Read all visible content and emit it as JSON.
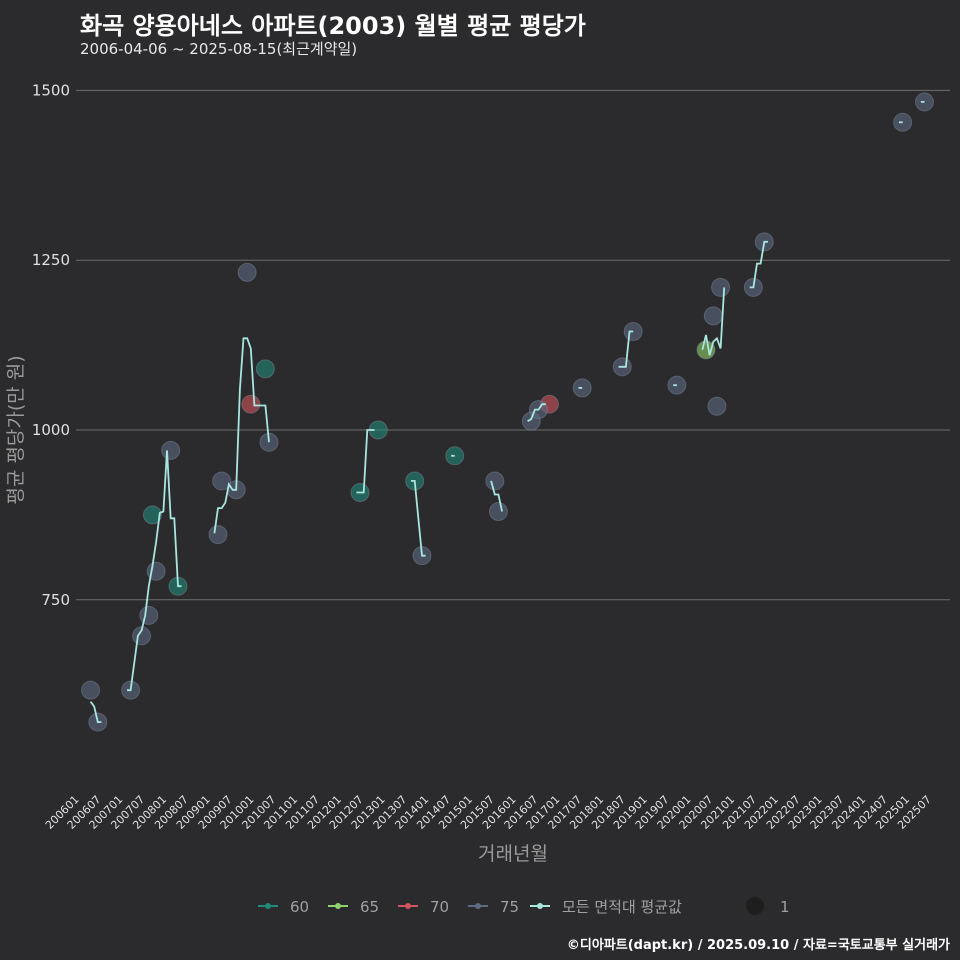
{
  "title": "화곡 양용아네스 아파트(2003) 월별 평균 평당가",
  "subtitle": "2006-04-06 ~ 2025-08-15(최근계약일)",
  "footer": "©디아파트(dapt.kr) / 2025.09.10 / 자료=국토교통부 실거래가",
  "chart_data": {
    "type": "scatter",
    "xlabel": "거래년월",
    "ylabel": "평균 평당가(만 원)",
    "ylim": [
      470,
      1530
    ],
    "yticks": [
      750,
      1000,
      1250,
      1500
    ],
    "xlim": [
      "2005-12",
      "2025-12"
    ],
    "xticks": [
      "200601",
      "200607",
      "200701",
      "200707",
      "200801",
      "200807",
      "200901",
      "200907",
      "201001",
      "201007",
      "201101",
      "201107",
      "201201",
      "201207",
      "201301",
      "201307",
      "201401",
      "201407",
      "201501",
      "201507",
      "201601",
      "201607",
      "201701",
      "201707",
      "201801",
      "201807",
      "201901",
      "201907",
      "202001",
      "202007",
      "202101",
      "202107",
      "202201",
      "202207",
      "202301",
      "202307",
      "202401",
      "202407",
      "202501",
      "202507"
    ],
    "grid": true,
    "colors": {
      "60": "#1f8a7a",
      "65": "#8fd16a",
      "70": "#d0555c",
      "75": "#5c6a82",
      "avg_line": "#a8e6df"
    },
    "legend": {
      "position": "bottom",
      "items": [
        {
          "key": "60",
          "label": "60"
        },
        {
          "key": "65",
          "label": "65"
        },
        {
          "key": "70",
          "label": "70"
        },
        {
          "key": "75",
          "label": "75"
        },
        {
          "key": "avg_line",
          "label": "모든 면적대 평균값"
        }
      ],
      "size_label": "1"
    },
    "series": [
      {
        "name": "60",
        "points": [
          [
            "2007-09",
            875
          ],
          [
            "2008-04",
            770
          ],
          [
            "2010-04",
            1090
          ],
          [
            "2012-06",
            908
          ],
          [
            "2012-11",
            1000
          ],
          [
            "2013-09",
            925
          ],
          [
            "2014-08",
            962
          ]
        ]
      },
      {
        "name": "65",
        "points": [
          [
            "2020-05",
            1118
          ]
        ]
      },
      {
        "name": "70",
        "points": [
          [
            "2009-12",
            1038
          ],
          [
            "2016-10",
            1038
          ]
        ]
      },
      {
        "name": "75",
        "points": [
          [
            "2006-04",
            617
          ],
          [
            "2006-06",
            570
          ],
          [
            "2007-03",
            617
          ],
          [
            "2007-06",
            697
          ],
          [
            "2007-08",
            727
          ],
          [
            "2007-10",
            792
          ],
          [
            "2008-02",
            970
          ],
          [
            "2009-03",
            846
          ],
          [
            "2009-04",
            925
          ],
          [
            "2009-08",
            912
          ],
          [
            "2009-11",
            1232
          ],
          [
            "2010-05",
            982
          ],
          [
            "2013-11",
            815
          ],
          [
            "2015-07",
            925
          ],
          [
            "2015-08",
            880
          ],
          [
            "2016-05",
            1013
          ],
          [
            "2016-07",
            1030
          ],
          [
            "2017-07",
            1062
          ],
          [
            "2018-06",
            1093
          ],
          [
            "2018-09",
            1145
          ],
          [
            "2019-09",
            1066
          ],
          [
            "2020-07",
            1168
          ],
          [
            "2020-08",
            1035
          ],
          [
            "2020-09",
            1210
          ],
          [
            "2021-06",
            1210
          ],
          [
            "2021-09",
            1277
          ],
          [
            "2024-11",
            1453
          ],
          [
            "2025-05",
            1483
          ]
        ]
      }
    ],
    "avg_lines": [
      [
        [
          "2006-04",
          600
        ],
        [
          "2006-05",
          593
        ],
        [
          "2006-06",
          570
        ],
        [
          "2006-07",
          570
        ]
      ],
      [
        [
          "2007-02",
          617
        ],
        [
          "2007-03",
          617
        ],
        [
          "2007-05",
          697
        ],
        [
          "2007-06",
          705
        ],
        [
          "2007-07",
          727
        ],
        [
          "2007-08",
          770
        ],
        [
          "2007-09",
          800
        ],
        [
          "2007-10",
          835
        ],
        [
          "2007-11",
          878
        ],
        [
          "2007-12",
          880
        ],
        [
          "2008-01",
          970
        ],
        [
          "2008-02",
          870
        ],
        [
          "2008-03",
          870
        ],
        [
          "2008-04",
          770
        ],
        [
          "2008-05",
          770
        ]
      ],
      [
        [
          "2009-02",
          848
        ],
        [
          "2009-03",
          885
        ],
        [
          "2009-04",
          885
        ],
        [
          "2009-05",
          893
        ],
        [
          "2009-06",
          920
        ],
        [
          "2009-07",
          912
        ],
        [
          "2009-08",
          912
        ],
        [
          "2009-09",
          1060
        ],
        [
          "2009-10",
          1135
        ],
        [
          "2009-11",
          1135
        ],
        [
          "2009-12",
          1120
        ],
        [
          "2010-01",
          1036
        ],
        [
          "2010-03",
          1036
        ],
        [
          "2010-04",
          1036
        ],
        [
          "2010-05",
          982
        ]
      ],
      [
        [
          "2012-05",
          908
        ],
        [
          "2012-07",
          908
        ],
        [
          "2012-08",
          1000
        ],
        [
          "2012-10",
          1000
        ]
      ],
      [
        [
          "2013-08",
          925
        ],
        [
          "2013-09",
          925
        ],
        [
          "2013-11",
          815
        ],
        [
          "2013-12",
          815
        ]
      ],
      [
        [
          "2014-07",
          962
        ],
        [
          "2014-08",
          962
        ]
      ],
      [
        [
          "2015-06",
          925
        ],
        [
          "2015-07",
          905
        ],
        [
          "2015-08",
          905
        ],
        [
          "2015-09",
          880
        ]
      ],
      [
        [
          "2016-04",
          1013
        ],
        [
          "2016-05",
          1016
        ],
        [
          "2016-06",
          1030
        ],
        [
          "2016-07",
          1030
        ],
        [
          "2016-08",
          1038
        ],
        [
          "2016-09",
          1038
        ]
      ],
      [
        [
          "2017-06",
          1062
        ],
        [
          "2017-07",
          1062
        ]
      ],
      [
        [
          "2018-05",
          1093
        ],
        [
          "2018-07",
          1093
        ],
        [
          "2018-08",
          1145
        ],
        [
          "2018-09",
          1145
        ]
      ],
      [
        [
          "2019-08",
          1066
        ],
        [
          "2019-09",
          1066
        ]
      ],
      [
        [
          "2020-04",
          1118
        ],
        [
          "2020-05",
          1140
        ],
        [
          "2020-06",
          1110
        ],
        [
          "2020-07",
          1130
        ],
        [
          "2020-08",
          1135
        ],
        [
          "2020-09",
          1120
        ],
        [
          "2020-10",
          1210
        ]
      ],
      [
        [
          "2021-05",
          1210
        ],
        [
          "2021-06",
          1210
        ],
        [
          "2021-07",
          1245
        ],
        [
          "2021-08",
          1245
        ],
        [
          "2021-09",
          1277
        ],
        [
          "2021-10",
          1277
        ]
      ],
      [
        [
          "2024-10",
          1453
        ],
        [
          "2024-11",
          1453
        ]
      ],
      [
        [
          "2025-04",
          1483
        ],
        [
          "2025-05",
          1483
        ]
      ]
    ]
  }
}
